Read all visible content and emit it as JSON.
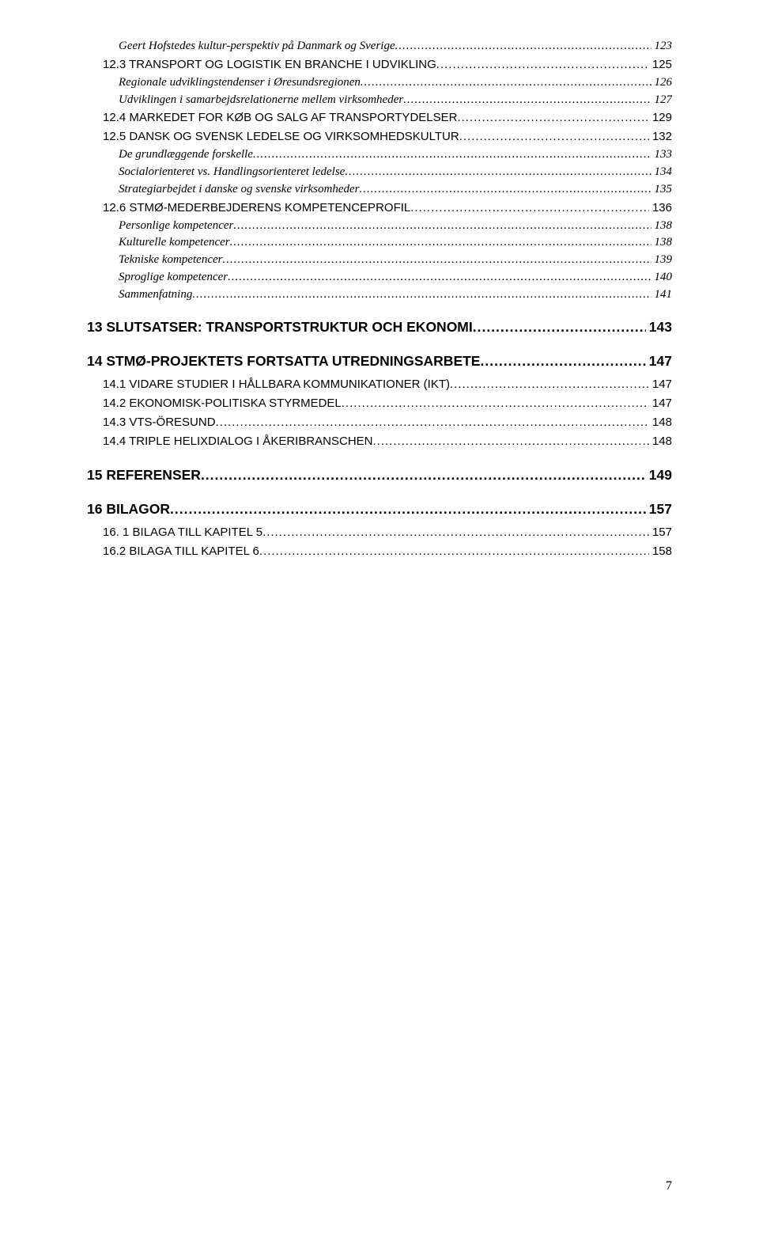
{
  "footerPage": "7",
  "entries": [
    {
      "level": 3,
      "label": "Geert Hofstedes kultur-perspektiv på Danmark og Sverige",
      "page": "123"
    },
    {
      "level": 2,
      "label": "12.3 TRANSPORT OG LOGISTIK EN BRANCHE I UDVIKLING",
      "page": "125"
    },
    {
      "level": 3,
      "label": "Regionale udviklingstendenser i Øresundsregionen",
      "page": "126"
    },
    {
      "level": 3,
      "label": "Udviklingen i samarbejdsrelationerne mellem virksomheder",
      "page": "127"
    },
    {
      "level": 2,
      "label": "12.4 MARKEDET FOR KØB OG SALG AF  TRANSPORTYDELSER",
      "page": "129"
    },
    {
      "level": 2,
      "label": "12.5 DANSK OG SVENSK LEDELSE OG VIRKSOMHEDSKULTUR",
      "page": "132"
    },
    {
      "level": 3,
      "label": "De grundlæggende forskelle",
      "page": "133"
    },
    {
      "level": 3,
      "label": "Socialorienteret vs. Handlingsorienteret ledelse",
      "page": "134"
    },
    {
      "level": 3,
      "label": "Strategiarbejdet i danske og svenske virksomheder",
      "page": "135"
    },
    {
      "level": 2,
      "label": "12.6 STMØ-MEDERBEJDERENS KOMPETENCEPROFIL",
      "page": "136"
    },
    {
      "level": 3,
      "label": "Personlige kompetencer",
      "page": "138"
    },
    {
      "level": 3,
      "label": "Kulturelle kompetencer",
      "page": "138"
    },
    {
      "level": 3,
      "label": "Tekniske kompetencer",
      "page": "139"
    },
    {
      "level": 3,
      "label": "Sproglige kompetencer",
      "page": "140"
    },
    {
      "level": 3,
      "label": "Sammenfatning",
      "page": "141"
    },
    {
      "level": 1,
      "label": "13 SLUTSATSER: TRANSPORTSTRUKTUR OCH EKONOMI",
      "page": "143"
    },
    {
      "level": 1,
      "label": "14 STMØ-PROJEKTETS FORTSATTA UTREDNINGSARBETE",
      "page": "147"
    },
    {
      "level": 2,
      "label": "14.1 VIDARE STUDIER I HÅLLBARA KOMMUNIKATIONER (IKT)",
      "page": "147"
    },
    {
      "level": 2,
      "label": "14.2 EKONOMISK-POLITISKA STYRMEDEL",
      "page": "147"
    },
    {
      "level": 2,
      "label": "14.3 VTS-ÖRESUND",
      "page": "148"
    },
    {
      "level": 2,
      "label": "14.4 TRIPLE HELIXDIALOG I ÅKERIBRANSCHEN",
      "page": "148"
    },
    {
      "level": 1,
      "label": "15 REFERENSER",
      "page": "149"
    },
    {
      "level": 1,
      "label": "16 BILAGOR",
      "page": "157"
    },
    {
      "level": 2,
      "label": "16. 1 BILAGA TILL KAPITEL 5",
      "page": "157"
    },
    {
      "level": 2,
      "label": "16.2 BILAGA TILL KAPITEL 6",
      "page": "158"
    }
  ]
}
